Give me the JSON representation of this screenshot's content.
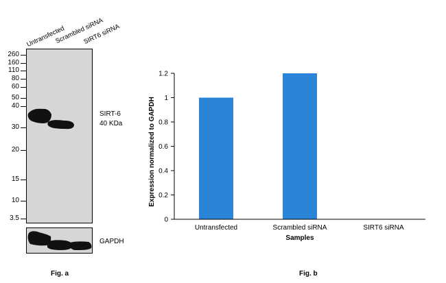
{
  "western_blot": {
    "lane_labels": [
      "Untransfected",
      "Scrambled siRNA",
      "SIRT6 siRNA"
    ],
    "mw_markers": [
      "260",
      "160",
      "110",
      "80",
      "60",
      "50",
      "40",
      "30",
      "20",
      "15",
      "10",
      "3.5"
    ],
    "band_label": [
      "SIRT-6",
      "40 KDa"
    ],
    "loading_control_label": "GAPDH",
    "caption": "Fig. a"
  },
  "bar_chart": {
    "caption": "Fig. b",
    "bar_color": "#2a84d8"
  },
  "chart_data": {
    "type": "bar",
    "title": "",
    "categories": [
      "Untransfected",
      "Scrambled siRNA",
      "SIRT6 siRNA"
    ],
    "values": [
      1.0,
      1.2,
      0.0
    ],
    "xlabel": "Samples",
    "ylabel": "Expression normalized to GAPDH",
    "ylim": [
      0,
      1.2
    ],
    "yticks": [
      "0",
      "0.2",
      "0.4",
      "0.6",
      "0.8",
      "1",
      "1.2"
    ],
    "grid": false,
    "legend": "none"
  }
}
